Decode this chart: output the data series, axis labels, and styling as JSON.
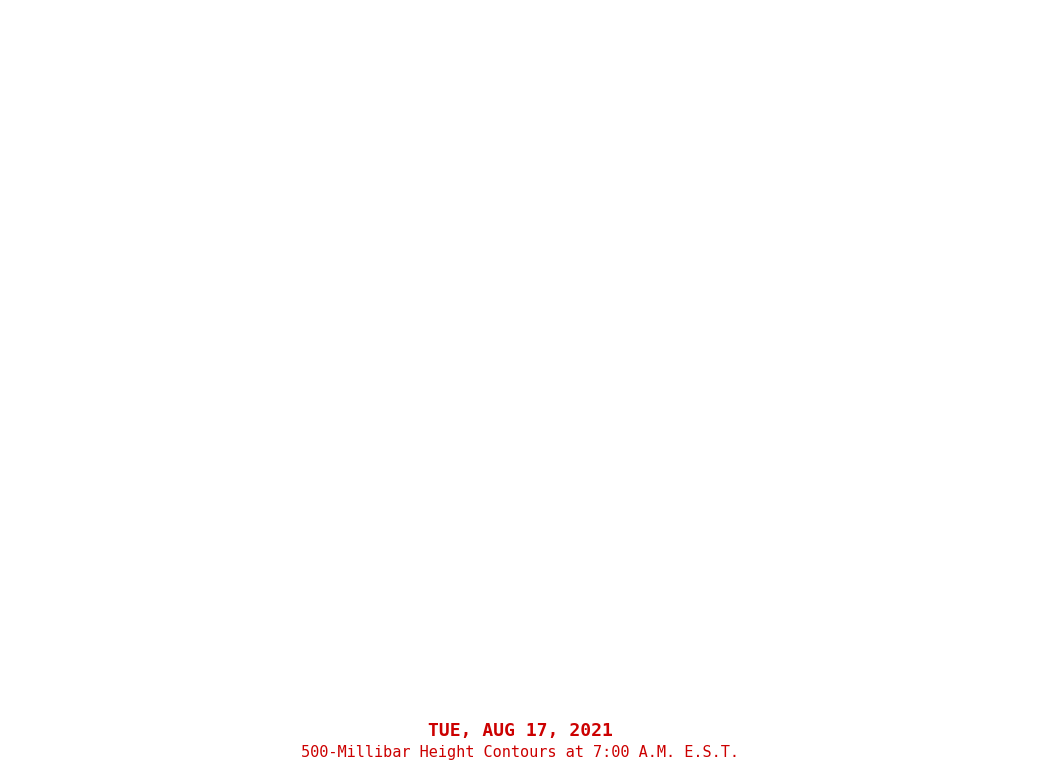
{
  "title_line1": "TUE, AUG 17, 2021",
  "title_line2": "500-Millibar Height Contours at 7:00 A.M. E.S.T.",
  "title_color": "#cc0000",
  "background_color": "#ffffff",
  "figsize": [
    10.4,
    7.8
  ],
  "dpi": 100,
  "brown_color": "#8B5A2B",
  "red_color": "#cc0000",
  "blue_color": "#0000cc",
  "map_extent": [
    -135,
    -55,
    18,
    70
  ],
  "brown_lw": 1.8,
  "red_dotsize": 2.8
}
